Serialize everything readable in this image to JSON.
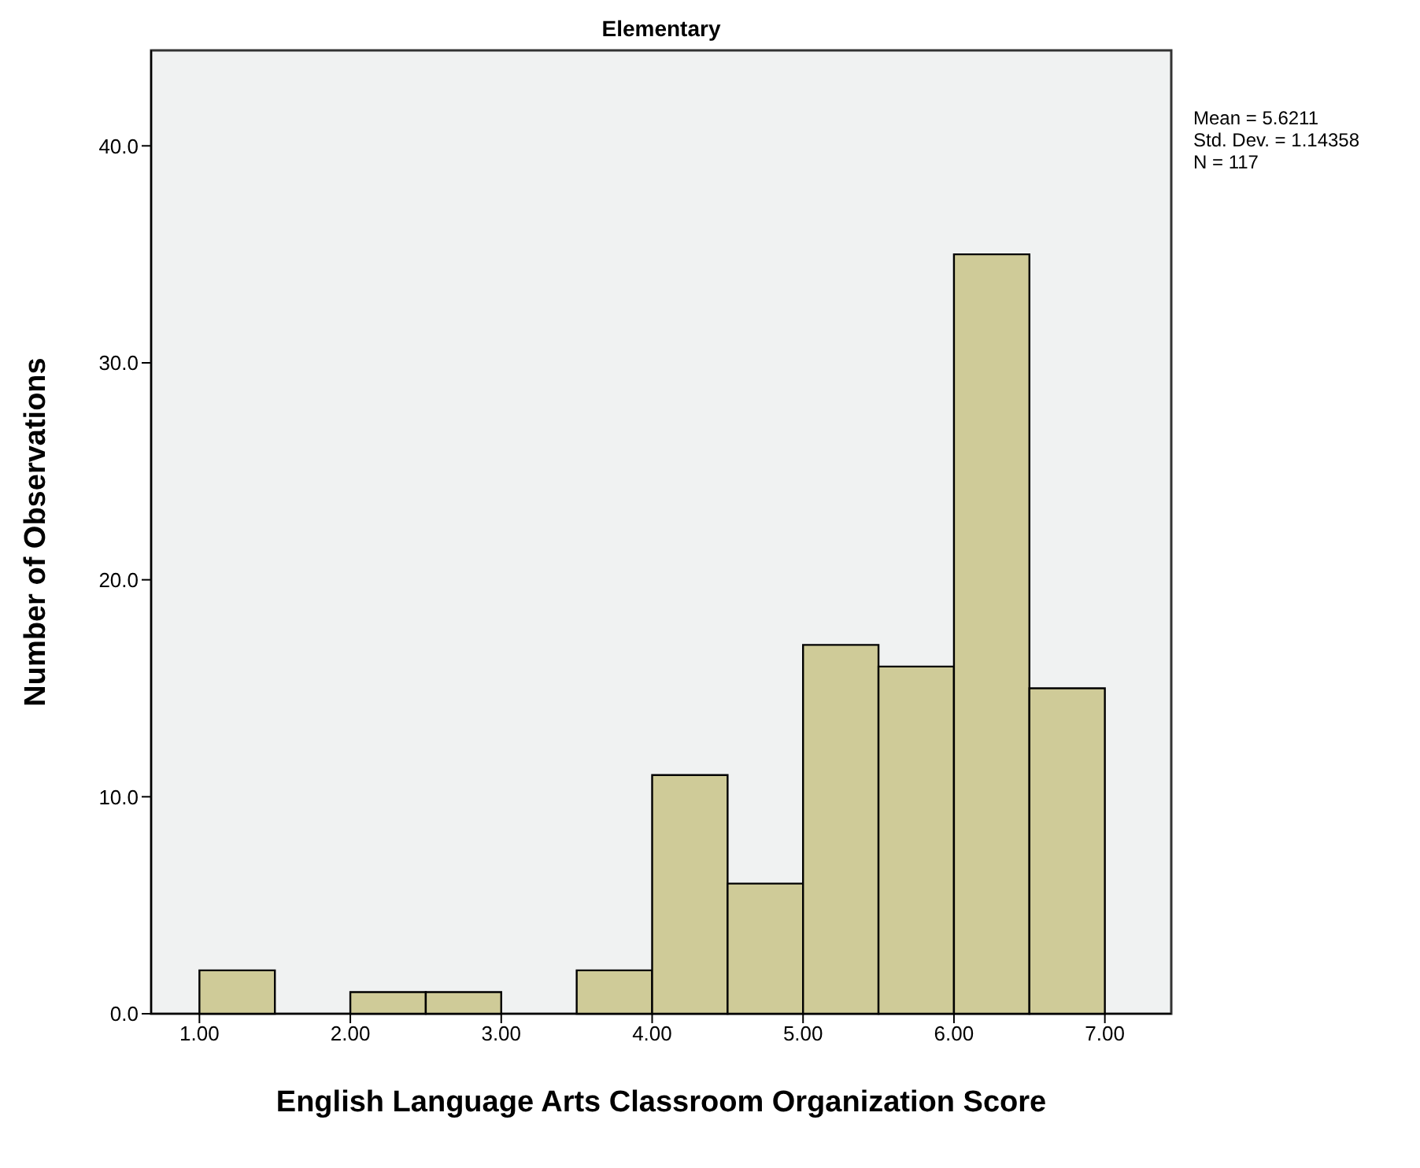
{
  "chart_data": {
    "type": "histogram",
    "title": "Elementary",
    "xlabel": "English Language Arts Classroom Organization Score",
    "ylabel": "Number of Observations",
    "bins": [
      1.0,
      1.5,
      2.0,
      2.5,
      3.0,
      3.5,
      4.0,
      4.5,
      5.0,
      5.5,
      6.0,
      6.5,
      7.0
    ],
    "values": [
      2,
      0,
      1,
      1,
      0,
      2,
      11,
      6,
      17,
      16,
      35,
      15
    ],
    "color": "#cfcb98",
    "xlim": [
      0.68,
      7.44
    ],
    "ylim": [
      0,
      44.4
    ],
    "xticks": [
      {
        "value": 1,
        "label": "1.00"
      },
      {
        "value": 2,
        "label": "2.00"
      },
      {
        "value": 3,
        "label": "3.00"
      },
      {
        "value": 4,
        "label": "4.00"
      },
      {
        "value": 5,
        "label": "5.00"
      },
      {
        "value": 6,
        "label": "6.00"
      },
      {
        "value": 7,
        "label": "7.00"
      }
    ],
    "yticks": [
      {
        "value": 0,
        "label": "0.0"
      },
      {
        "value": 10,
        "label": "10.0"
      },
      {
        "value": 20,
        "label": "20.0"
      },
      {
        "value": 30,
        "label": "30.0"
      },
      {
        "value": 40,
        "label": "40.0"
      }
    ],
    "annotations": [
      "Mean = 5.6211",
      "Std. Dev. = 1.14358",
      "N = 117"
    ]
  }
}
